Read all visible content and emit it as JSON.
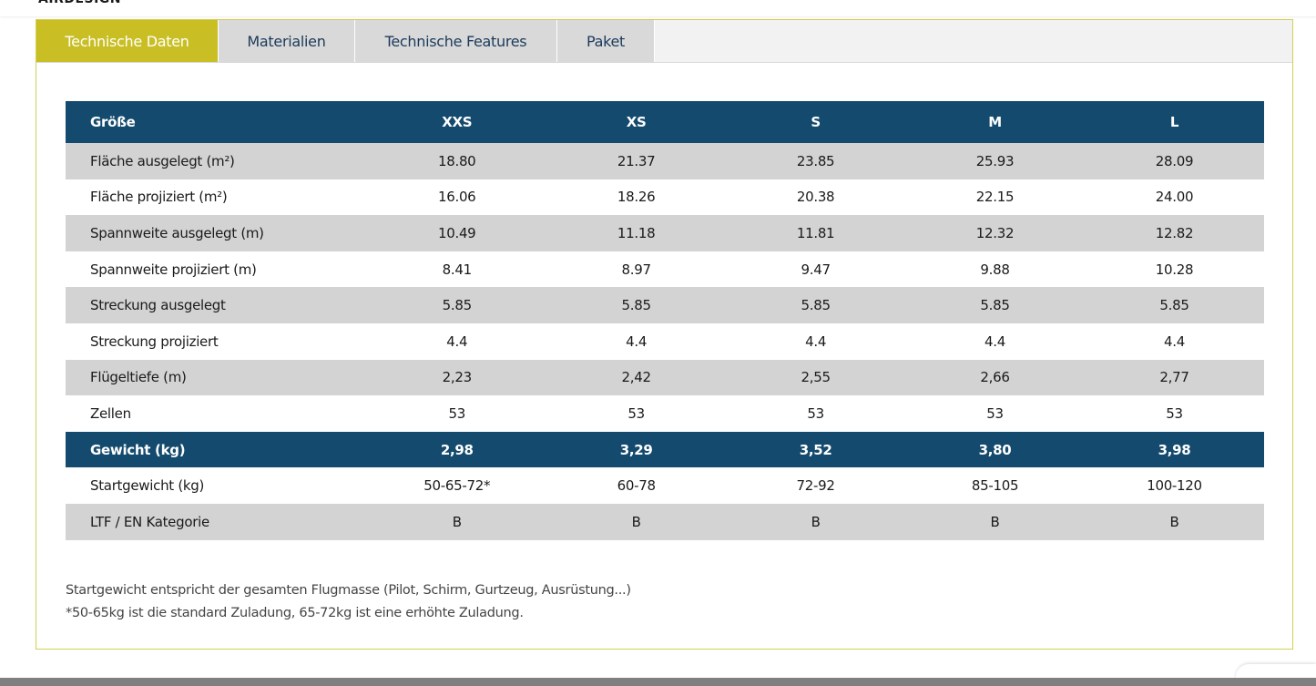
{
  "tabs": [
    {
      "label": "Technische Daten"
    },
    {
      "label": "Materialien"
    },
    {
      "label": "Technische Features"
    },
    {
      "label": "Paket"
    }
  ],
  "table": {
    "header": [
      "Größe",
      "XXS",
      "XS",
      "S",
      "M",
      "L"
    ],
    "rows": [
      {
        "label": "Fläche ausgelegt (m²)",
        "values": [
          "18.80",
          "21.37",
          "23.85",
          "25.93",
          "28.09"
        ]
      },
      {
        "label": "Fläche projiziert (m²)",
        "values": [
          "16.06",
          "18.26",
          "20.38",
          "22.15",
          "24.00"
        ]
      },
      {
        "label": "Spannweite ausgelegt (m)",
        "values": [
          "10.49",
          "11.18",
          "11.81",
          "12.32",
          "12.82"
        ]
      },
      {
        "label": "Spannweite projiziert (m)",
        "values": [
          "8.41",
          "8.97",
          "9.47",
          "9.88",
          "10.28"
        ]
      },
      {
        "label": "Streckung ausgelegt",
        "values": [
          "5.85",
          "5.85",
          "5.85",
          "5.85",
          "5.85"
        ]
      },
      {
        "label": "Streckung projiziert",
        "values": [
          "4.4",
          "4.4",
          "4.4",
          "4.4",
          "4.4"
        ]
      },
      {
        "label": "Flügeltiefe (m)",
        "values": [
          "2,23",
          "2,42",
          "2,55",
          "2,66",
          "2,77"
        ]
      },
      {
        "label": "Zellen",
        "values": [
          "53",
          "53",
          "53",
          "53",
          "53"
        ]
      },
      {
        "label": "Gewicht (kg)",
        "values": [
          "2,98",
          "3,29",
          "3,52",
          "3,80",
          "3,98"
        ]
      },
      {
        "label": "Startgewicht (kg)",
        "values": [
          "50-65-72*",
          "60-78",
          "72-92",
          "85-105",
          "100-120"
        ]
      },
      {
        "label": "LTF / EN Kategorie",
        "values": [
          "B",
          "B",
          "B",
          "B",
          "B"
        ]
      }
    ]
  },
  "notes": {
    "line1": "Startgewicht entspricht der gesamten Flugmasse (Pilot, Schirm, Gurtzeug, Ausrüstung...)",
    "line2": "*50-65kg ist die standard Zuladung, 65-72kg ist eine erhöhte Zuladung."
  },
  "colors": {
    "accent": "#c9bf24",
    "header": "#144a6e",
    "row_grey": "#d3d3d3"
  }
}
